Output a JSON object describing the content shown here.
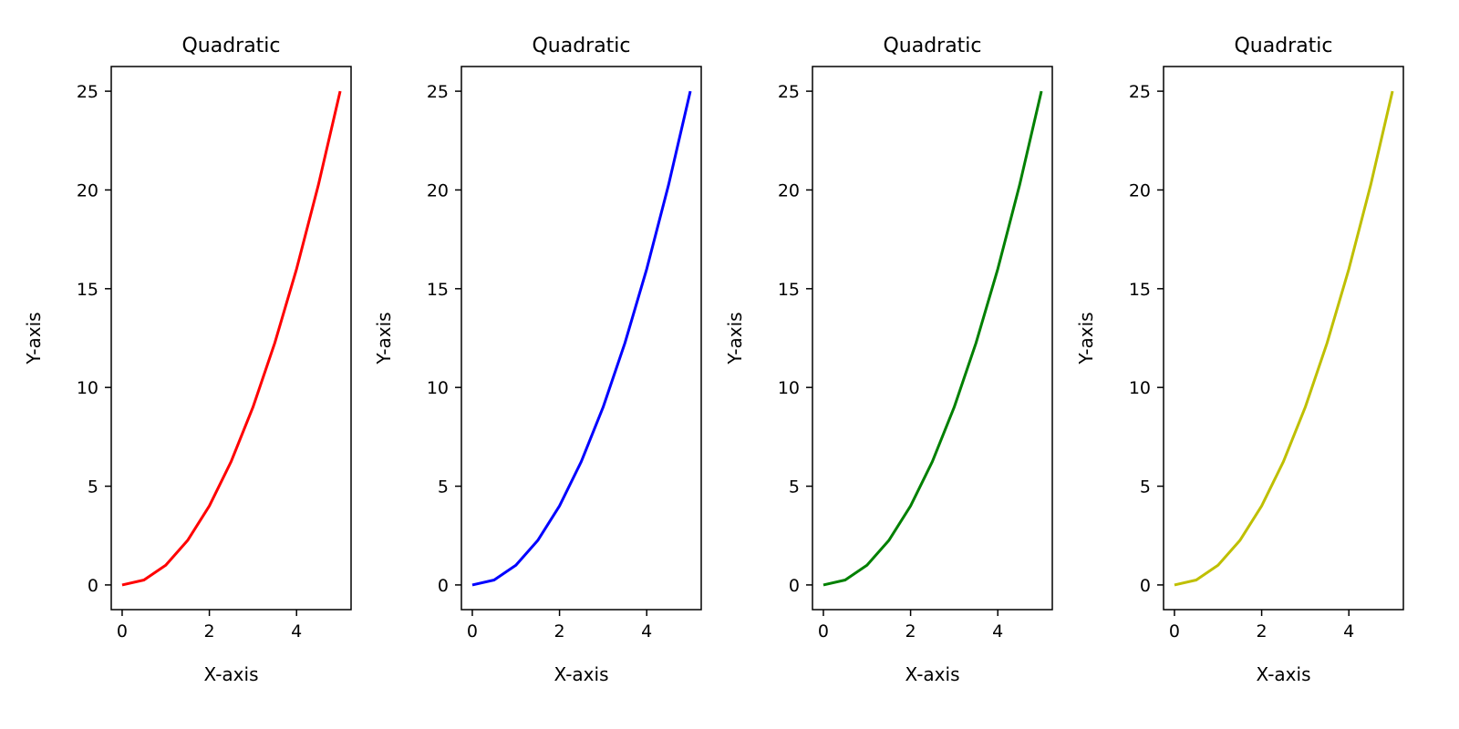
{
  "chart_data": [
    {
      "type": "line",
      "title": "Quadratic",
      "xlabel": "X-axis",
      "ylabel": "Y-axis",
      "xlim": [
        -0.25,
        5.25
      ],
      "ylim": [
        -1.25,
        26.25
      ],
      "xticks": [
        0,
        2,
        4
      ],
      "yticks": [
        0,
        5,
        10,
        15,
        20,
        25
      ],
      "grid": false,
      "series": [
        {
          "color": "#ff0000",
          "x": [
            0,
            0.5,
            1,
            1.5,
            2,
            2.5,
            3,
            3.5,
            4,
            4.5,
            5
          ],
          "y": [
            0,
            0.25,
            1,
            2.25,
            4,
            6.25,
            9,
            12.25,
            16,
            20.25,
            25
          ]
        }
      ]
    },
    {
      "type": "line",
      "title": "Quadratic",
      "xlabel": "X-axis",
      "ylabel": "Y-axis",
      "xlim": [
        -0.25,
        5.25
      ],
      "ylim": [
        -1.25,
        26.25
      ],
      "xticks": [
        0,
        2,
        4
      ],
      "yticks": [
        0,
        5,
        10,
        15,
        20,
        25
      ],
      "grid": false,
      "series": [
        {
          "color": "#0000ff",
          "x": [
            0,
            0.5,
            1,
            1.5,
            2,
            2.5,
            3,
            3.5,
            4,
            4.5,
            5
          ],
          "y": [
            0,
            0.25,
            1,
            2.25,
            4,
            6.25,
            9,
            12.25,
            16,
            20.25,
            25
          ]
        }
      ]
    },
    {
      "type": "line",
      "title": "Quadratic",
      "xlabel": "X-axis",
      "ylabel": "Y-axis",
      "xlim": [
        -0.25,
        5.25
      ],
      "ylim": [
        -1.25,
        26.25
      ],
      "xticks": [
        0,
        2,
        4
      ],
      "yticks": [
        0,
        5,
        10,
        15,
        20,
        25
      ],
      "grid": false,
      "series": [
        {
          "color": "#008000",
          "x": [
            0,
            0.5,
            1,
            1.5,
            2,
            2.5,
            3,
            3.5,
            4,
            4.5,
            5
          ],
          "y": [
            0,
            0.25,
            1,
            2.25,
            4,
            6.25,
            9,
            12.25,
            16,
            20.25,
            25
          ]
        }
      ]
    },
    {
      "type": "line",
      "title": "Quadratic",
      "xlabel": "X-axis",
      "ylabel": "Y-axis",
      "xlim": [
        -0.25,
        5.25
      ],
      "ylim": [
        -1.25,
        26.25
      ],
      "xticks": [
        0,
        2,
        4
      ],
      "yticks": [
        0,
        5,
        10,
        15,
        20,
        25
      ],
      "grid": false,
      "series": [
        {
          "color": "#bfbf00",
          "x": [
            0,
            0.5,
            1,
            1.5,
            2,
            2.5,
            3,
            3.5,
            4,
            4.5,
            5
          ],
          "y": [
            0,
            0.25,
            1,
            2.25,
            4,
            6.25,
            9,
            12.25,
            16,
            20.25,
            25
          ]
        }
      ]
    }
  ]
}
